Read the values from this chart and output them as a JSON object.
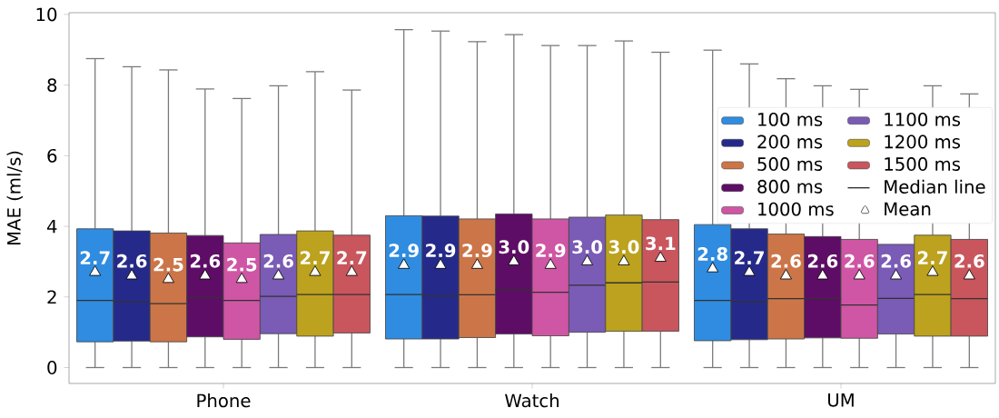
{
  "chart_data": {
    "type": "box",
    "ylabel": "MAE (ml/s)",
    "categories": [
      "Phone",
      "Watch",
      "UM"
    ],
    "ylim": [
      -0.45,
      10.05
    ],
    "yticks": [
      0,
      2,
      4,
      6,
      8,
      10
    ],
    "grid": false,
    "legend": "right",
    "annotations": [
      "Median line",
      "Mean"
    ],
    "series": [
      {
        "name": "100 ms",
        "color": "#2f8ce0",
        "boxes": [
          {
            "low": 0,
            "q1": 0.73,
            "median": 1.9,
            "q3": 3.93,
            "high": 8.75,
            "mean": 2.7
          },
          {
            "low": 0,
            "q1": 0.81,
            "median": 2.07,
            "q3": 4.3,
            "high": 9.57,
            "mean": 2.9
          },
          {
            "low": 0,
            "q1": 0.76,
            "median": 1.9,
            "q3": 4.05,
            "high": 8.99,
            "mean": 2.8
          }
        ],
        "value_labels": [
          "2.7",
          "2.9",
          "2.8"
        ]
      },
      {
        "name": "200 ms",
        "color": "#252a8a",
        "boxes": [
          {
            "low": 0,
            "q1": 0.75,
            "median": 1.86,
            "q3": 3.87,
            "high": 8.52,
            "mean": 2.6
          },
          {
            "low": 0,
            "q1": 0.81,
            "median": 2.03,
            "q3": 4.29,
            "high": 9.53,
            "mean": 2.9
          },
          {
            "low": 0,
            "q1": 0.79,
            "median": 1.86,
            "q3": 3.93,
            "high": 8.6,
            "mean": 2.7
          }
        ],
        "value_labels": [
          "2.6",
          "2.9",
          "2.7"
        ]
      },
      {
        "name": "500 ms",
        "color": "#cc7548",
        "boxes": [
          {
            "low": 0,
            "q1": 0.73,
            "median": 1.81,
            "q3": 3.81,
            "high": 8.43,
            "mean": 2.5
          },
          {
            "low": 0,
            "q1": 0.85,
            "median": 2.06,
            "q3": 4.21,
            "high": 9.23,
            "mean": 2.9
          },
          {
            "low": 0,
            "q1": 0.81,
            "median": 1.95,
            "q3": 3.78,
            "high": 8.18,
            "mean": 2.6
          }
        ],
        "value_labels": [
          "2.5",
          "2.9",
          "2.6"
        ]
      },
      {
        "name": "800 ms",
        "color": "#5e0d66",
        "boxes": [
          {
            "low": 0,
            "q1": 0.87,
            "median": 1.98,
            "q3": 3.74,
            "high": 7.89,
            "mean": 2.6
          },
          {
            "low": 0,
            "q1": 0.95,
            "median": 2.21,
            "q3": 4.35,
            "high": 9.43,
            "mean": 3.0
          },
          {
            "low": 0,
            "q1": 0.84,
            "median": 1.95,
            "q3": 3.71,
            "high": 7.98,
            "mean": 2.6
          }
        ],
        "value_labels": [
          "2.6",
          "3.0",
          "2.6"
        ]
      },
      {
        "name": "1000 ms",
        "color": "#cf56a4",
        "boxes": [
          {
            "low": 0,
            "q1": 0.8,
            "median": 1.9,
            "q3": 3.53,
            "high": 7.62,
            "mean": 2.5
          },
          {
            "low": 0,
            "q1": 0.9,
            "median": 2.13,
            "q3": 4.21,
            "high": 9.12,
            "mean": 2.9
          },
          {
            "low": 0,
            "q1": 0.83,
            "median": 1.77,
            "q3": 3.63,
            "high": 7.88,
            "mean": 2.6
          }
        ],
        "value_labels": [
          "2.5",
          "2.9",
          "2.6"
        ]
      },
      {
        "name": "1100 ms",
        "color": "#7a5bb5",
        "boxes": [
          {
            "low": 0,
            "q1": 0.96,
            "median": 2.02,
            "q3": 3.77,
            "high": 7.98,
            "mean": 2.6
          },
          {
            "low": 0,
            "q1": 1.0,
            "median": 2.33,
            "q3": 4.26,
            "high": 9.12,
            "mean": 3.0
          },
          {
            "low": 0,
            "q1": 0.95,
            "median": 1.96,
            "q3": 3.49,
            "high": null,
            "mean": 2.6
          }
        ],
        "value_labels": [
          "2.6",
          "3.0",
          "2.6"
        ]
      },
      {
        "name": "1200 ms",
        "color": "#bca21e",
        "boxes": [
          {
            "low": 0,
            "q1": 0.89,
            "median": 2.07,
            "q3": 3.87,
            "high": 8.38,
            "mean": 2.7
          },
          {
            "low": 0,
            "q1": 1.03,
            "median": 2.4,
            "q3": 4.32,
            "high": 9.25,
            "mean": 3.0
          },
          {
            "low": 0,
            "q1": 0.89,
            "median": 2.07,
            "q3": 3.75,
            "high": 7.98,
            "mean": 2.7
          }
        ],
        "value_labels": [
          "2.7",
          "3.0",
          "2.7"
        ]
      },
      {
        "name": "1500 ms",
        "color": "#c9565d",
        "boxes": [
          {
            "low": 0,
            "q1": 0.98,
            "median": 2.07,
            "q3": 3.75,
            "high": 7.86,
            "mean": 2.7
          },
          {
            "low": 0,
            "q1": 1.03,
            "median": 2.42,
            "q3": 4.19,
            "high": 8.93,
            "mean": 3.1
          },
          {
            "low": 0,
            "q1": 0.89,
            "median": 1.95,
            "q3": 3.63,
            "high": 7.75,
            "mean": 2.6
          }
        ],
        "value_labels": [
          "2.7",
          "3.1",
          "2.6"
        ]
      }
    ]
  }
}
